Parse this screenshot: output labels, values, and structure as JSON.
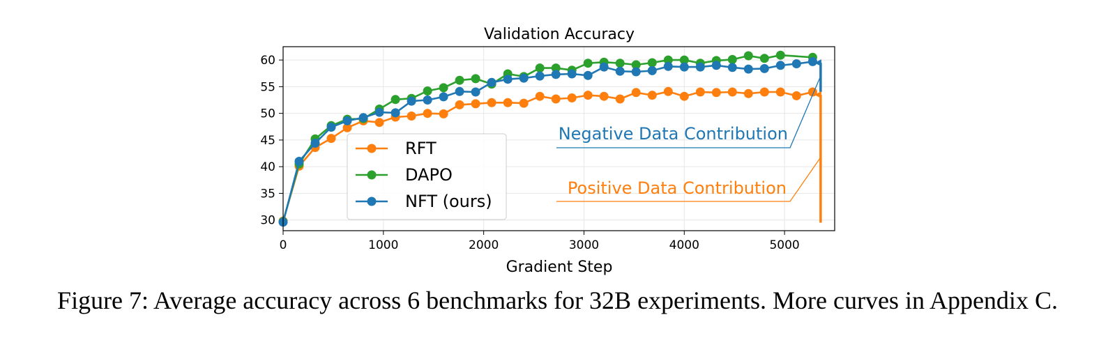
{
  "chart_data": {
    "type": "line",
    "title": "Validation Accuracy",
    "xlabel": "Gradient Step",
    "ylabel": "",
    "xlim": [
      0,
      5500
    ],
    "ylim": [
      28,
      62.5
    ],
    "xticks": [
      0,
      1000,
      2000,
      3000,
      4000,
      5000
    ],
    "yticks": [
      30,
      35,
      40,
      45,
      50,
      55,
      60
    ],
    "grid": true,
    "legend": "lower-center",
    "x": [
      0,
      160,
      320,
      480,
      640,
      800,
      960,
      1120,
      1280,
      1440,
      1600,
      1760,
      1920,
      2080,
      2240,
      2400,
      2560,
      2720,
      2880,
      3040,
      3200,
      3360,
      3520,
      3680,
      3840,
      4000,
      4160,
      4320,
      4480,
      4640,
      4800,
      4960,
      5120,
      5280
    ],
    "series": [
      {
        "name": "RFT",
        "color": "#ff7f0e",
        "values": [
          29.8,
          40.1,
          43.6,
          45.3,
          47.3,
          48.6,
          48.3,
          49.3,
          49.5,
          50.0,
          49.9,
          51.6,
          51.8,
          52.0,
          52.0,
          51.9,
          53.2,
          52.7,
          52.9,
          53.4,
          53.2,
          52.7,
          53.9,
          53.4,
          54.1,
          53.2,
          54.0,
          53.9,
          54.0,
          53.7,
          54.0,
          54.0,
          53.3,
          54.0
        ]
      },
      {
        "name": "DAPO",
        "color": "#2ca02c",
        "values": [
          29.7,
          40.5,
          45.2,
          47.7,
          48.9,
          49.0,
          50.8,
          52.6,
          52.8,
          54.2,
          54.8,
          56.2,
          56.5,
          55.5,
          57.4,
          56.9,
          58.5,
          58.5,
          58.1,
          59.4,
          59.6,
          59.4,
          59.1,
          59.5,
          60.0,
          60.0,
          59.4,
          59.9,
          60.1,
          60.8,
          60.3,
          60.9,
          null,
          60.5
        ]
      },
      {
        "name": "NFT (ours)",
        "color": "#1f77b4",
        "values": [
          29.6,
          41.0,
          44.4,
          47.4,
          48.6,
          49.2,
          50.2,
          50.1,
          52.3,
          52.5,
          53.1,
          54.1,
          54.0,
          55.8,
          56.4,
          56.6,
          57.0,
          57.3,
          57.4,
          57.1,
          58.7,
          57.9,
          57.8,
          58.0,
          58.8,
          58.7,
          58.7,
          59.0,
          58.6,
          58.3,
          58.4,
          59.0,
          59.3,
          59.7
        ]
      }
    ],
    "annotations": [
      {
        "text": "Negative Data Contribution",
        "color": "#1f77b4",
        "arrow_x": 5360,
        "arrow_from": 54.0,
        "arrow_to": 60.0
      },
      {
        "text": "Positive Data Contribution",
        "color": "#ff7f0e",
        "arrow_x": 5360,
        "arrow_from": 29.5,
        "arrow_to": 54.0
      }
    ]
  },
  "caption": "Figure 7: Average accuracy across 6 benchmarks for 32B experiments. More curves in Appendix C."
}
